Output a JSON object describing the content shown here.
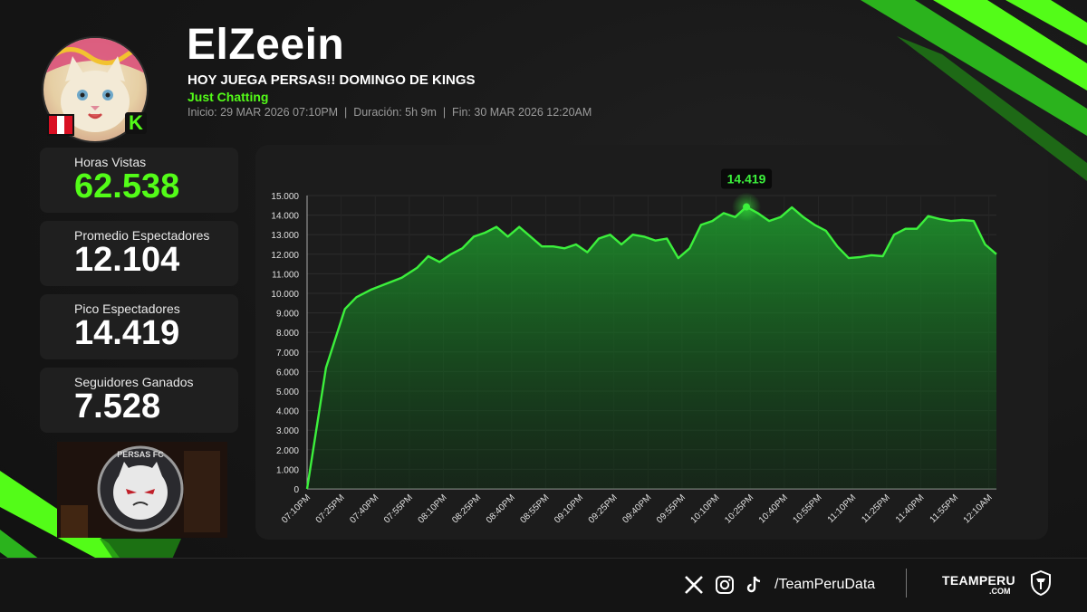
{
  "header": {
    "streamer_name": "ElZeein",
    "stream_title": "HOY JUEGA PERSAS!! DOMINGO DE KINGS",
    "category": "Just Chatting",
    "meta_line": "Inicio: 29 MAR 2026 07:10PM  |  Duración: 5h 9m  |  Fin: 30 MAR 2026 12:20AM",
    "platform_badge": "K"
  },
  "stats": [
    {
      "label": "Horas Vistas",
      "value": "62.538",
      "color": "#53fc18"
    },
    {
      "label": "Promedio Espectadores",
      "value": "12.104",
      "color": "#ffffff"
    },
    {
      "label": "Pico Espectadores",
      "value": "14.419",
      "color": "#ffffff"
    },
    {
      "label": "Seguidores Ganados",
      "value": "7.528",
      "color": "#ffffff"
    }
  ],
  "thumbnail": {
    "logo_text": "PERSAS FC"
  },
  "chart_data": {
    "type": "area",
    "title": "",
    "xlabel": "",
    "ylabel": "",
    "ylim": [
      0,
      15000
    ],
    "y_ticks": [
      "0",
      "1.000",
      "2.000",
      "3.000",
      "4.000",
      "5.000",
      "6.000",
      "7.000",
      "8.000",
      "9.000",
      "10.000",
      "11.000",
      "12.000",
      "13.000",
      "14.000",
      "15.000"
    ],
    "x_ticks": [
      "07:10PM",
      "07:25PM",
      "07:40PM",
      "07:55PM",
      "08:10PM",
      "08:25PM",
      "08:40PM",
      "08:55PM",
      "09:10PM",
      "09:25PM",
      "09:40PM",
      "09:55PM",
      "10:10PM",
      "10:25PM",
      "10:40PM",
      "10:55PM",
      "11:10PM",
      "11:25PM",
      "11:40PM",
      "11:55PM",
      "12:10AM"
    ],
    "x_minutes_note": "minutes since 07:10PM",
    "points": [
      [
        0,
        0
      ],
      [
        5,
        6200
      ],
      [
        10,
        9200
      ],
      [
        13,
        9800
      ],
      [
        17,
        10200
      ],
      [
        21,
        10500
      ],
      [
        25,
        10800
      ],
      [
        29,
        11300
      ],
      [
        32,
        11900
      ],
      [
        35,
        11600
      ],
      [
        38,
        12000
      ],
      [
        41,
        12300
      ],
      [
        44,
        12900
      ],
      [
        47,
        13100
      ],
      [
        50,
        13400
      ],
      [
        53,
        12900
      ],
      [
        56,
        13400
      ],
      [
        59,
        12900
      ],
      [
        62,
        12400
      ],
      [
        65,
        12400
      ],
      [
        68,
        12300
      ],
      [
        71,
        12500
      ],
      [
        74,
        12100
      ],
      [
        77,
        12800
      ],
      [
        80,
        13000
      ],
      [
        83,
        12500
      ],
      [
        86,
        13000
      ],
      [
        89,
        12900
      ],
      [
        92,
        12700
      ],
      [
        95,
        12800
      ],
      [
        98,
        11800
      ],
      [
        101,
        12300
      ],
      [
        104,
        13500
      ],
      [
        107,
        13700
      ],
      [
        110,
        14100
      ],
      [
        113,
        13900
      ],
      [
        116,
        14419
      ],
      [
        119,
        14100
      ],
      [
        122,
        13700
      ],
      [
        125,
        13900
      ],
      [
        128,
        14400
      ],
      [
        131,
        13900
      ],
      [
        134,
        13500
      ],
      [
        137,
        13200
      ],
      [
        140,
        12400
      ],
      [
        143,
        11800
      ],
      [
        146,
        11850
      ],
      [
        149,
        11950
      ],
      [
        152,
        11900
      ],
      [
        155,
        13000
      ],
      [
        158,
        13300
      ],
      [
        161,
        13300
      ],
      [
        164,
        13950
      ],
      [
        167,
        13800
      ],
      [
        170,
        13700
      ],
      [
        173,
        13750
      ],
      [
        176,
        13700
      ],
      [
        179,
        12500
      ],
      [
        182,
        12000
      ]
    ],
    "peak_label": "14.419",
    "line_color": "#3cf03c",
    "grid": true
  },
  "footer": {
    "handle": "/TeamPeruData",
    "brand": "TEAMPERU",
    "brand_sub": ".COM",
    "social_icons": [
      "x-icon",
      "instagram-icon",
      "tiktok-icon"
    ]
  },
  "colors": {
    "accent": "#53fc18",
    "flag_red": "#d91023"
  }
}
